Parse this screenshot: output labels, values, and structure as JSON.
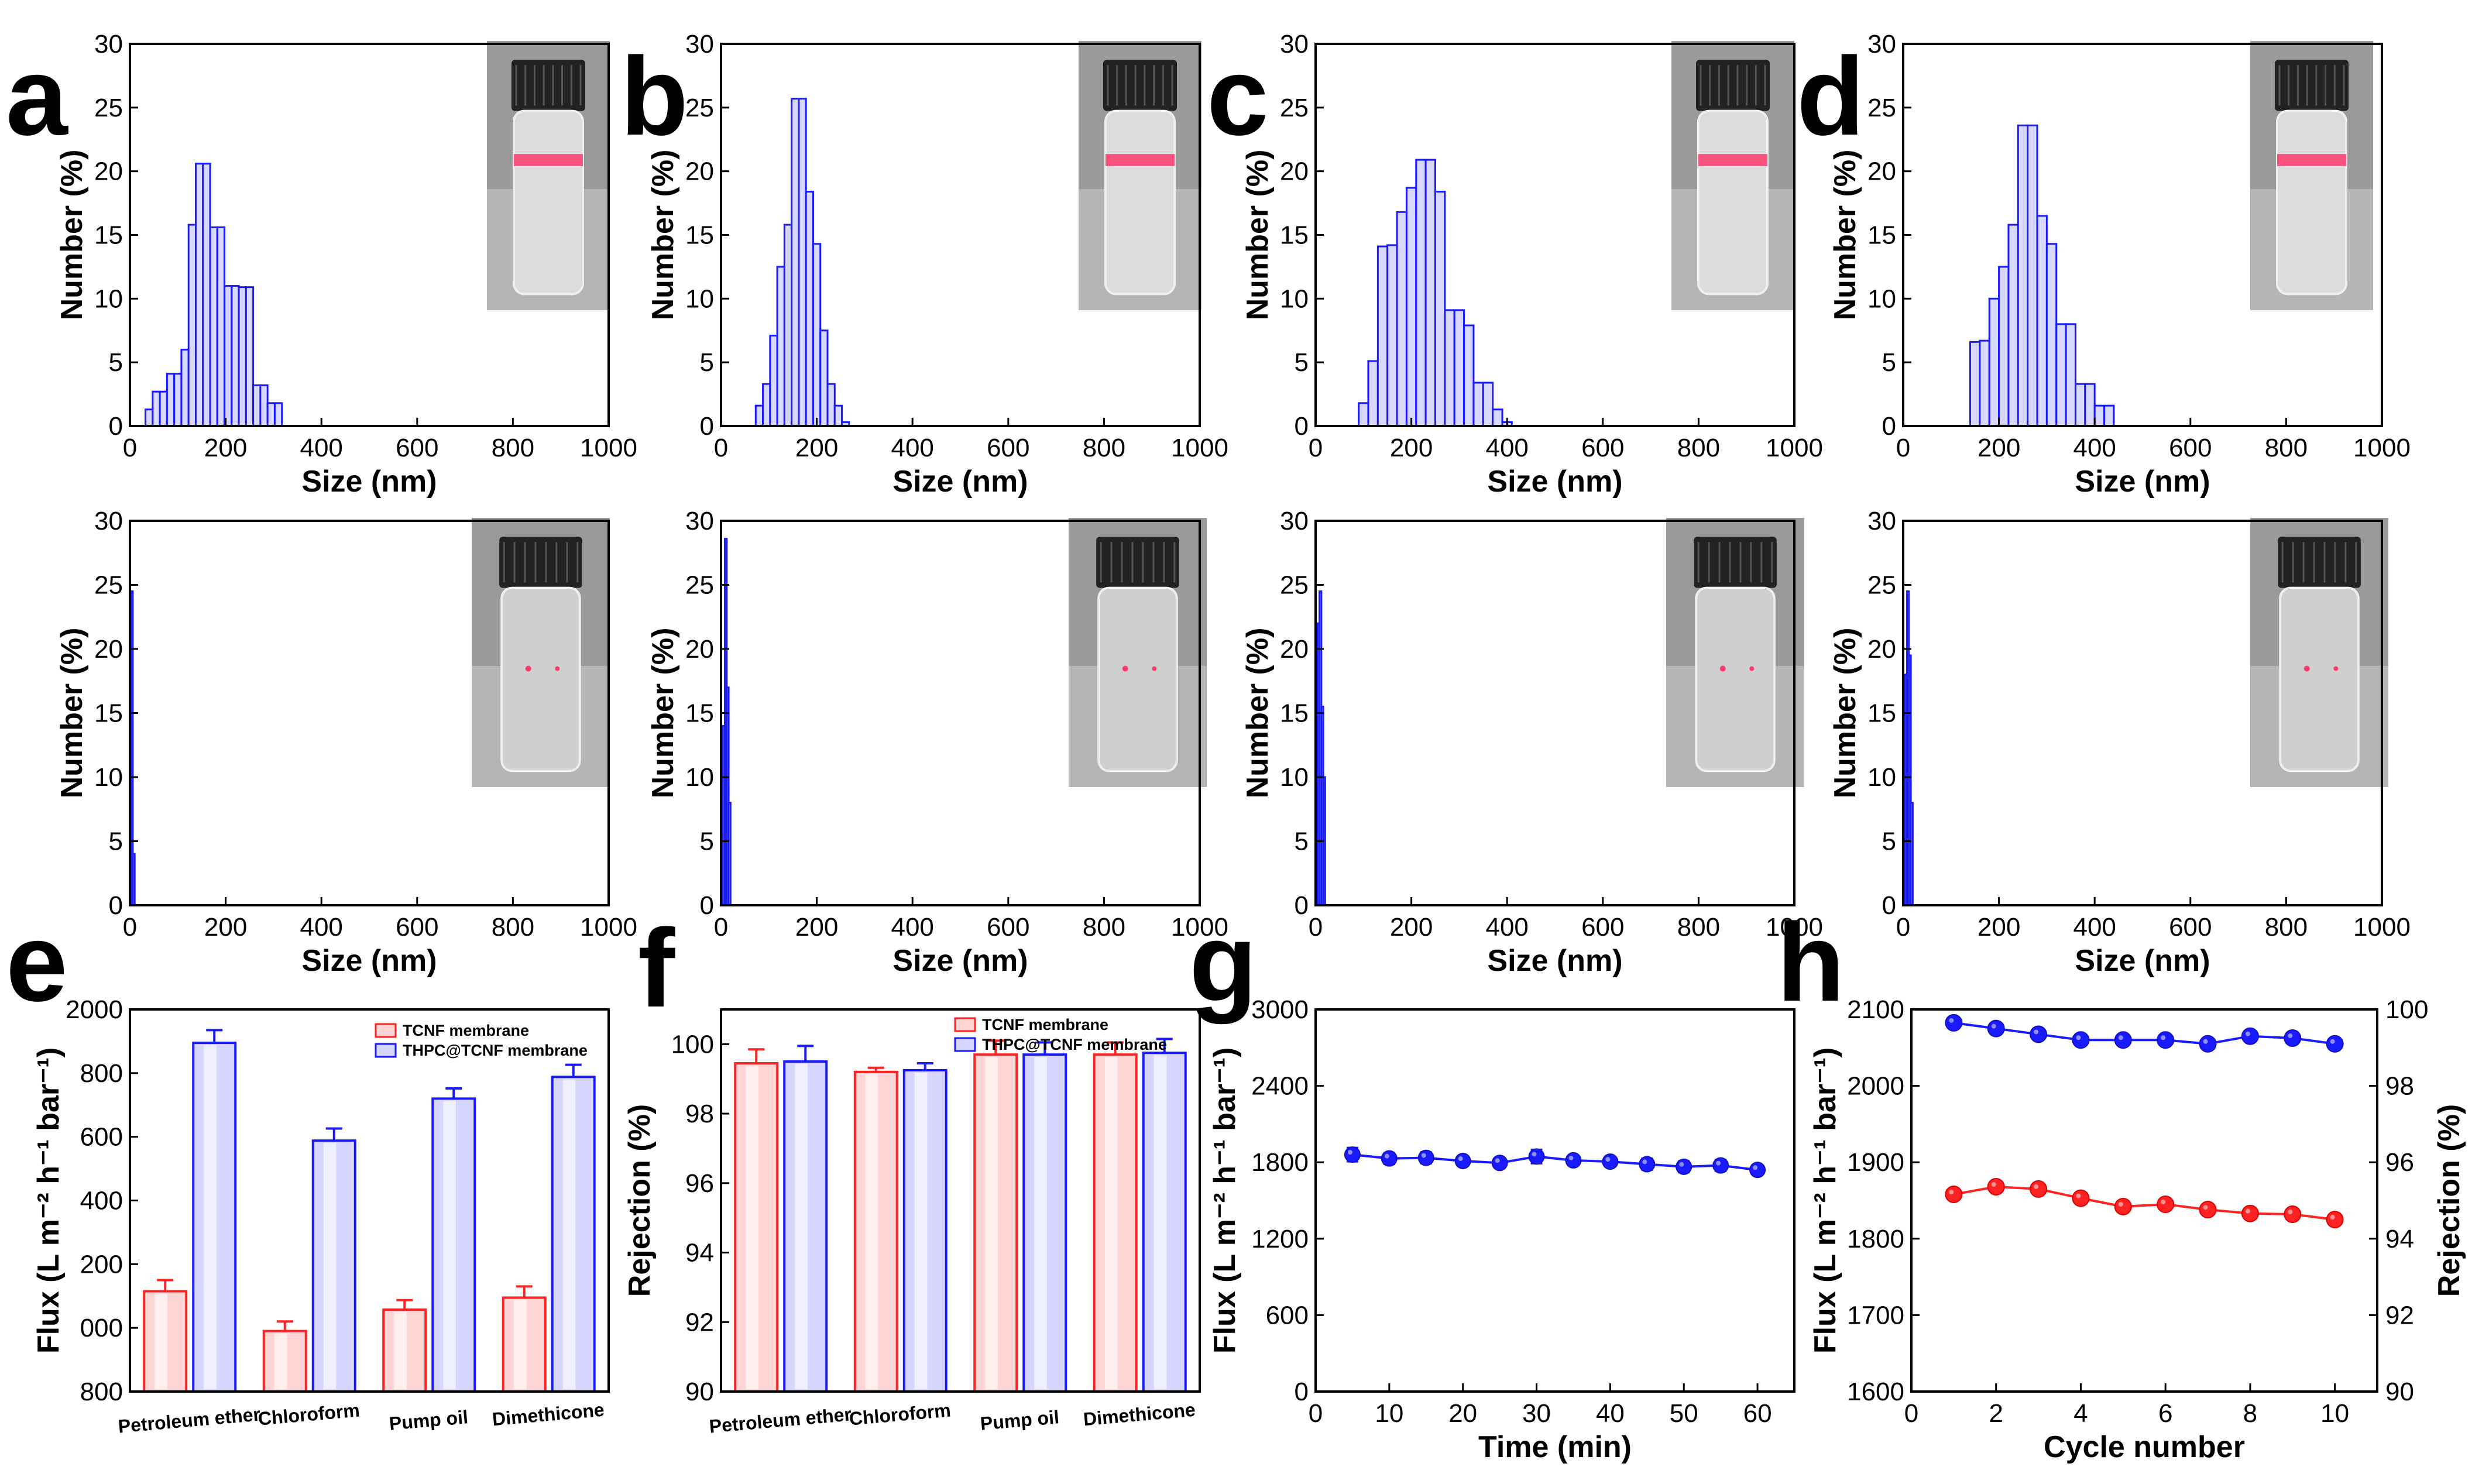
{
  "figure": {
    "colors": {
      "bar_edge": "#1a1aff",
      "bar_face": "#d8d8ff",
      "red": "#ff2222",
      "blue": "#1a1aff",
      "red_dark": "#e00000",
      "blue_dark": "#1010c8"
    }
  },
  "chart_data": [
    {
      "id": "a",
      "label": "a",
      "type": "bar",
      "xlabel": "Size (nm)",
      "ylabel": "Number (%)",
      "xlim": [
        0,
        1000
      ],
      "ylim": [
        0,
        30
      ],
      "xticks": [
        "0",
        "200",
        "400",
        "600",
        "800",
        "1000"
      ],
      "yticks": [
        "0",
        "5",
        "10",
        "15",
        "20",
        "25",
        "30"
      ],
      "x": [
        40,
        55,
        70,
        85,
        100,
        115,
        130,
        145,
        160,
        175,
        190,
        205,
        220,
        235,
        250,
        265,
        280,
        295,
        310
      ],
      "values": [
        1.3,
        2.7,
        2.7,
        4.1,
        4.1,
        6.0,
        15.8,
        20.6,
        20.6,
        15.6,
        15.6,
        11.0,
        11.0,
        10.9,
        10.9,
        3.2,
        3.2,
        1.8,
        1.8
      ],
      "photo": "vial with red laser beam (Tyndall)"
    },
    {
      "id": "b",
      "label": "b",
      "type": "bar",
      "xlabel": "Size (nm)",
      "ylabel": "Number (%)",
      "xlim": [
        0,
        1000
      ],
      "ylim": [
        0,
        30
      ],
      "xticks": [
        "0",
        "200",
        "400",
        "600",
        "800",
        "1000"
      ],
      "yticks": [
        "0",
        "5",
        "10",
        "15",
        "20",
        "25",
        "30"
      ],
      "x": [
        80,
        95,
        110,
        125,
        140,
        155,
        170,
        185,
        200,
        215,
        230,
        245,
        260
      ],
      "values": [
        1.6,
        3.3,
        7.1,
        12.5,
        15.8,
        25.7,
        25.7,
        18.4,
        14.3,
        7.5,
        3.3,
        1.6,
        0.3
      ],
      "photo": "vial with red laser beam (Tyndall)"
    },
    {
      "id": "c",
      "label": "c",
      "type": "bar",
      "xlabel": "Size (nm)",
      "ylabel": "Number (%)",
      "xlim": [
        0,
        1000
      ],
      "ylim": [
        0,
        30
      ],
      "xticks": [
        "0",
        "200",
        "400",
        "600",
        "800",
        "1000"
      ],
      "yticks": [
        "0",
        "5",
        "10",
        "15",
        "20",
        "25",
        "30"
      ],
      "x": [
        100,
        120,
        140,
        160,
        180,
        200,
        220,
        240,
        260,
        280,
        300,
        320,
        340,
        360,
        380,
        400
      ],
      "values": [
        1.8,
        5.1,
        14.1,
        14.2,
        16.8,
        18.7,
        20.9,
        20.9,
        18.4,
        9.1,
        9.1,
        7.9,
        3.4,
        3.4,
        1.3,
        0.3
      ],
      "photo": "vial with red laser beam (Tyndall)"
    },
    {
      "id": "d",
      "label": "d",
      "type": "bar",
      "xlabel": "Size (nm)",
      "ylabel": "Number (%)",
      "xlim": [
        0,
        1000
      ],
      "ylim": [
        0,
        30
      ],
      "xticks": [
        "0",
        "200",
        "400",
        "600",
        "800",
        "1000"
      ],
      "yticks": [
        "0",
        "5",
        "10",
        "15",
        "20",
        "25",
        "30"
      ],
      "x": [
        150,
        170,
        190,
        210,
        230,
        250,
        270,
        290,
        310,
        330,
        350,
        370,
        390,
        410,
        430
      ],
      "values": [
        6.6,
        6.7,
        10.0,
        12.5,
        15.8,
        23.6,
        23.6,
        16.5,
        14.3,
        8.0,
        8.0,
        3.3,
        3.3,
        1.6,
        1.6
      ],
      "photo": "vial with red laser beam (Tyndall)"
    },
    {
      "id": "a2",
      "label": "",
      "type": "bar",
      "xlabel": "Size (nm)",
      "ylabel": "Number (%)",
      "xlim": [
        0,
        1000
      ],
      "ylim": [
        0,
        30
      ],
      "xticks": [
        "0",
        "200",
        "400",
        "600",
        "800",
        "1000"
      ],
      "yticks": [
        "0",
        "5",
        "10",
        "15",
        "20",
        "25",
        "30"
      ],
      "x": [
        4,
        8
      ],
      "values": [
        24.5,
        4.0
      ],
      "photo": "clear vial, faint laser spots"
    },
    {
      "id": "b2",
      "label": "",
      "type": "bar",
      "xlabel": "Size (nm)",
      "ylabel": "Number (%)",
      "xlim": [
        0,
        1000
      ],
      "ylim": [
        0,
        30
      ],
      "xticks": [
        "0",
        "200",
        "400",
        "600",
        "800",
        "1000"
      ],
      "yticks": [
        "0",
        "5",
        "10",
        "15",
        "20",
        "25",
        "30"
      ],
      "x": [
        6,
        10,
        14,
        18
      ],
      "values": [
        14.0,
        28.6,
        17.0,
        8.0
      ],
      "photo": "clear vial, faint laser spots"
    },
    {
      "id": "c2",
      "label": "",
      "type": "bar",
      "xlabel": "Size (nm)",
      "ylabel": "Number (%)",
      "xlim": [
        0,
        1000
      ],
      "ylim": [
        0,
        30
      ],
      "xticks": [
        "0",
        "200",
        "400",
        "600",
        "800",
        "1000"
      ],
      "yticks": [
        "0",
        "5",
        "10",
        "15",
        "20",
        "25",
        "30"
      ],
      "x": [
        6,
        10,
        14,
        18
      ],
      "values": [
        22.0,
        24.5,
        15.5,
        10.0
      ],
      "photo": "clear vial, faint laser spots"
    },
    {
      "id": "d2",
      "label": "",
      "type": "bar",
      "xlabel": "Size (nm)",
      "ylabel": "Number (%)",
      "xlim": [
        0,
        1000
      ],
      "ylim": [
        0,
        30
      ],
      "xticks": [
        "0",
        "200",
        "400",
        "600",
        "800",
        "1000"
      ],
      "yticks": [
        "0",
        "5",
        "10",
        "15",
        "20",
        "25",
        "30"
      ],
      "x": [
        6,
        10,
        14,
        18
      ],
      "values": [
        18.0,
        24.5,
        19.5,
        8.0
      ],
      "photo": "clear vial, faint laser spots"
    },
    {
      "id": "e",
      "label": "e",
      "type": "bar",
      "xlabel": "",
      "ylabel": "Flux (L m⁻² h⁻¹ bar⁻¹)",
      "ylim": [
        800,
        2000
      ],
      "ytick_values": [
        800,
        1000,
        1200,
        1400,
        1600,
        1800,
        2000
      ],
      "yticks": [
        "800",
        "000",
        "200",
        "400",
        "600",
        "800",
        "2000"
      ],
      "categories": [
        "Petroleum ether",
        "Chloroform",
        "Pump oil",
        "Dimethicone"
      ],
      "series": [
        {
          "name": "TCNF membrane",
          "color": "red",
          "values": [
            1115,
            990,
            1057,
            1095
          ],
          "errors": [
            35,
            30,
            30,
            35
          ]
        },
        {
          "name": "THPC@TCNF membrane",
          "color": "blue",
          "values": [
            1895,
            1588,
            1720,
            1788
          ],
          "errors": [
            40,
            38,
            32,
            38
          ]
        }
      ]
    },
    {
      "id": "f",
      "label": "f",
      "type": "bar",
      "xlabel": "",
      "ylabel": "Rejection (%)",
      "ylim": [
        90,
        101
      ],
      "ytick_values": [
        90,
        92,
        94,
        96,
        98,
        100
      ],
      "yticks": [
        "90",
        "92",
        "94",
        "96",
        "98",
        "100"
      ],
      "categories": [
        "Petroleum ether",
        "Chloroform",
        "Pump oil",
        "Dimethicone"
      ],
      "series": [
        {
          "name": "TCNF membrane",
          "color": "red",
          "values": [
            99.45,
            99.2,
            99.7,
            99.7
          ],
          "errors": [
            0.4,
            0.12,
            0.4,
            0.35
          ]
        },
        {
          "name": "THPC@TCNF membrane",
          "color": "blue",
          "values": [
            99.5,
            99.25,
            99.7,
            99.75
          ],
          "errors": [
            0.45,
            0.2,
            0.35,
            0.4
          ]
        }
      ]
    },
    {
      "id": "g",
      "label": "g",
      "type": "line",
      "xlabel": "Time (min)",
      "ylabel": "Flux (L m⁻² h⁻¹ bar⁻¹)",
      "xlim": [
        0,
        65
      ],
      "ylim": [
        0,
        3000
      ],
      "xtick_values": [
        0,
        10,
        20,
        30,
        40,
        50,
        60
      ],
      "ytick_values": [
        0,
        600,
        1200,
        1800,
        2400,
        3000
      ],
      "xticks": [
        "0",
        "10",
        "20",
        "30",
        "40",
        "50",
        "60"
      ],
      "yticks": [
        "0",
        "600",
        "1200",
        "1800",
        "2400",
        "3000"
      ],
      "x": [
        5,
        10,
        15,
        20,
        25,
        30,
        35,
        40,
        45,
        50,
        55,
        60
      ],
      "values": [
        1860,
        1830,
        1835,
        1810,
        1795,
        1845,
        1815,
        1805,
        1785,
        1765,
        1775,
        1740
      ],
      "errors": [
        55,
        45,
        45,
        40,
        40,
        55,
        40,
        40,
        45,
        45,
        45,
        40
      ]
    },
    {
      "id": "h",
      "label": "h",
      "type": "line",
      "xlabel": "Cycle number",
      "ylabel": "Flux (L m⁻² h⁻¹ bar⁻¹)",
      "y2label": "Rejection (%)",
      "xlim": [
        0,
        11
      ],
      "ylim": [
        1600,
        2100
      ],
      "y2lim": [
        90,
        100
      ],
      "xtick_values": [
        0,
        2,
        4,
        6,
        8,
        10
      ],
      "ytick_values": [
        1600,
        1700,
        1800,
        1900,
        2000,
        2100
      ],
      "y2tick_values": [
        90,
        92,
        94,
        96,
        98,
        100
      ],
      "xticks": [
        "0",
        "2",
        "4",
        "6",
        "8",
        "10"
      ],
      "yticks": [
        "1600",
        "1700",
        "1800",
        "1900",
        "2000",
        "2100"
      ],
      "y2ticks": [
        "90",
        "92",
        "94",
        "96",
        "98",
        "100"
      ],
      "x": [
        1,
        2,
        3,
        4,
        5,
        6,
        7,
        8,
        9,
        10
      ],
      "series": [
        {
          "name": "Flux",
          "axis": "left",
          "color": "red",
          "values": [
            1858,
            1868,
            1865,
            1853,
            1842,
            1845,
            1838,
            1833,
            1832,
            1825
          ]
        },
        {
          "name": "Rejection",
          "axis": "right",
          "color": "blue",
          "values": [
            99.65,
            99.5,
            99.35,
            99.2,
            99.2,
            99.2,
            99.1,
            99.3,
            99.25,
            99.1
          ]
        }
      ]
    }
  ]
}
